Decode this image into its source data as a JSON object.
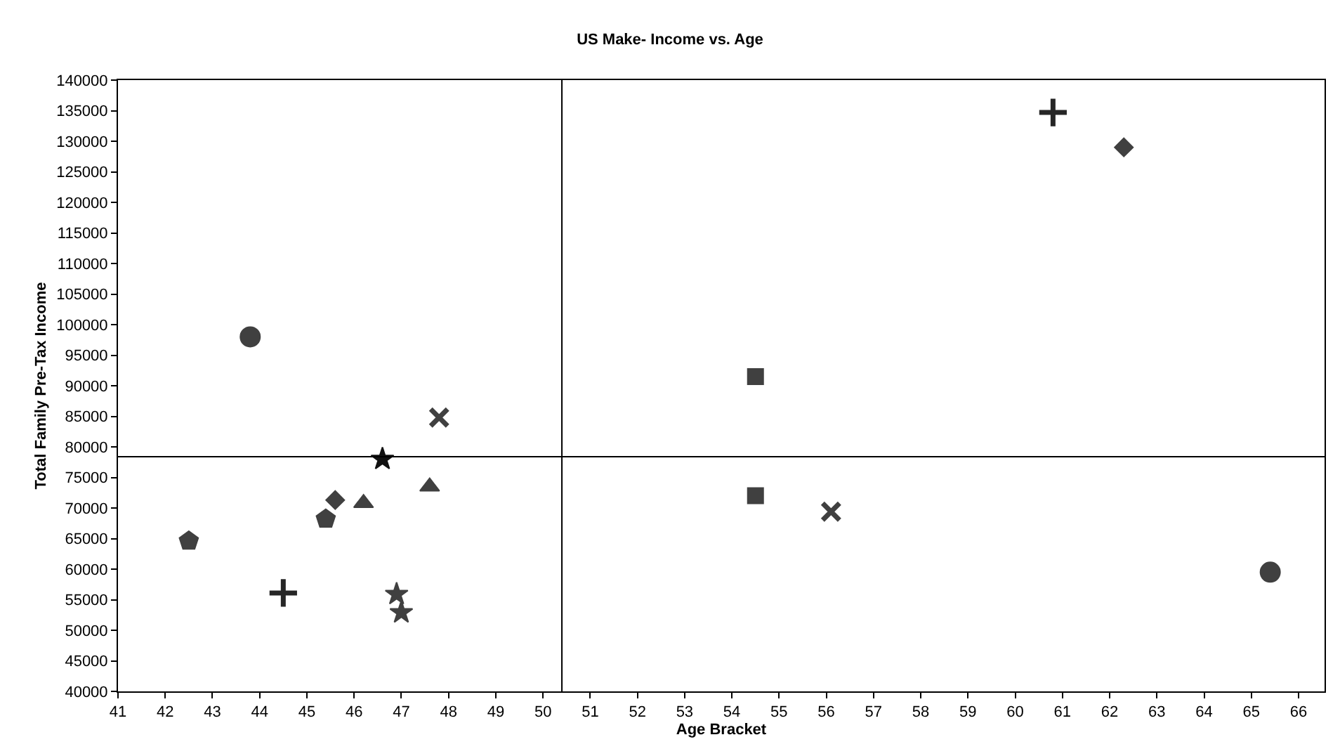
{
  "chart_data": {
    "type": "scatter",
    "title": "US Make- Income vs. Age",
    "xlabel": "Age Bracket",
    "ylabel": "Total Family Pre-Tax Income",
    "xlim": [
      41,
      66.55
    ],
    "xticks": [
      41,
      42,
      43,
      44,
      45,
      46,
      47,
      48,
      49,
      50,
      51,
      52,
      53,
      54,
      55,
      56,
      57,
      58,
      59,
      60,
      61,
      62,
      63,
      64,
      65,
      66
    ],
    "ylim": [
      40000,
      140000
    ],
    "yticks": [
      40000,
      45000,
      50000,
      55000,
      60000,
      65000,
      70000,
      75000,
      80000,
      85000,
      90000,
      95000,
      100000,
      105000,
      110000,
      115000,
      120000,
      125000,
      130000,
      135000,
      140000
    ],
    "legend": false,
    "series": [
      {
        "marker": "circle",
        "color": "#404040",
        "x": [
          43.8,
          65.4
        ],
        "values": [
          98000,
          59500
        ]
      },
      {
        "marker": "x",
        "color": "#404040",
        "x": [
          47.8,
          56.1
        ],
        "values": [
          84800,
          69400
        ]
      },
      {
        "marker": "star",
        "color": "#111111",
        "x": [
          46.6
        ],
        "values": [
          78000
        ]
      },
      {
        "marker": "triangle",
        "color": "#404040",
        "x": [
          47.6,
          46.2
        ],
        "values": [
          73500,
          70800
        ]
      },
      {
        "marker": "diamond",
        "color": "#404040",
        "x": [
          45.6,
          62.3
        ],
        "values": [
          71300,
          129000
        ]
      },
      {
        "color": "#404040",
        "x": [
          45.4,
          42.5
        ],
        "values": [
          68200,
          64600
        ]
      },
      {
        "marker": "cross",
        "color": "#262626",
        "x": [
          44.5,
          60.8
        ],
        "values": [
          56100,
          134700
        ]
      },
      {
        "marker": "star",
        "color": "#404040",
        "x": [
          46.9,
          47.0
        ],
        "values": [
          55900,
          52900
        ]
      },
      {
        "marker": "square",
        "color": "#404040",
        "x": [
          54.5,
          54.5
        ],
        "values": [
          91500,
          72000
        ]
      }
    ],
    "ref_lines": [
      {
        "axis": "x",
        "value": 50.4,
        "color": "#000000"
      },
      {
        "axis": "y",
        "value": 78400,
        "color": "#000000"
      }
    ]
  }
}
